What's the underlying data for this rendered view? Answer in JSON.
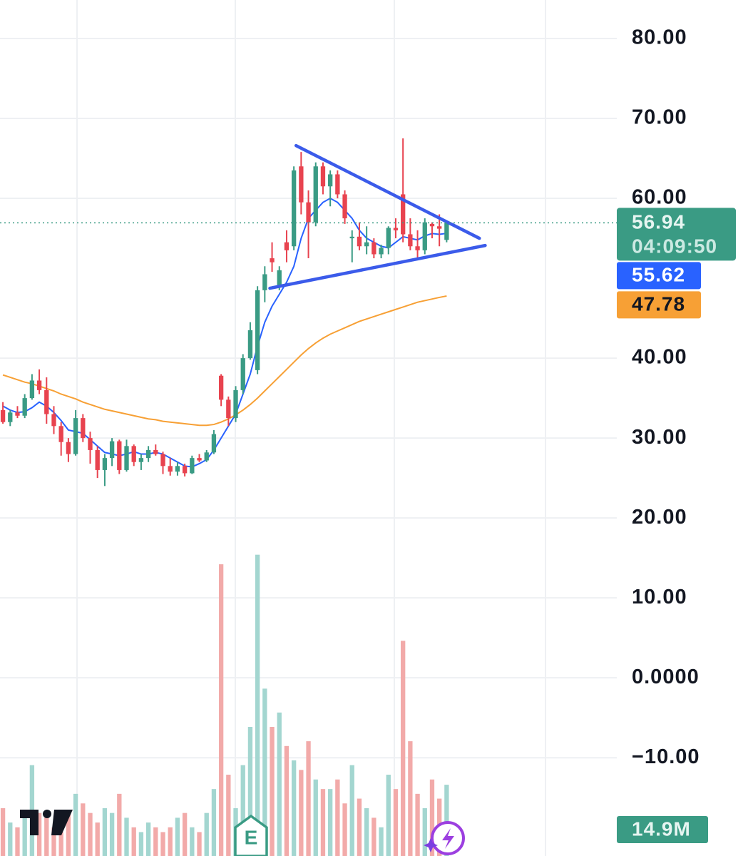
{
  "chart_data": {
    "type": "candlestick",
    "xlim": [
      -0.4,
      83.9
    ],
    "ylim": [
      -22.3,
      84.82
    ],
    "yticks": [
      {
        "value": 80,
        "label": "80.00"
      },
      {
        "value": 70,
        "label": "70.00"
      },
      {
        "value": 60,
        "label": "60.00"
      },
      {
        "value": 40,
        "label": "40.00"
      },
      {
        "value": 30,
        "label": "30.00"
      },
      {
        "value": 20,
        "label": "20.00"
      },
      {
        "value": 10,
        "label": "10.00"
      },
      {
        "value": 0,
        "label": "0.0000"
      },
      {
        "value": -10,
        "label": "−10.00"
      }
    ],
    "grid": true,
    "up_color": "#3a9b84",
    "down_color": "#e8434f",
    "candles": [
      [
        33.5,
        34.5,
        31.8,
        32.0
      ],
      [
        32.0,
        33.5,
        31.5,
        33.2
      ],
      [
        33.2,
        34.0,
        32.5,
        32.8
      ],
      [
        32.8,
        35.5,
        32.5,
        35.0
      ],
      [
        35.0,
        38.0,
        34.8,
        37.2
      ],
      [
        37.2,
        38.6,
        35.5,
        36.0
      ],
      [
        36.0,
        37.6,
        31.8,
        33.0
      ],
      [
        33.0,
        34.0,
        30.5,
        31.5
      ],
      [
        31.5,
        32.0,
        27.8,
        29.5
      ],
      [
        29.5,
        30.0,
        27.0,
        28.0
      ],
      [
        28.0,
        33.5,
        27.8,
        32.5
      ],
      [
        32.5,
        33.0,
        29.5,
        30.0
      ],
      [
        30.0,
        30.8,
        26.8,
        28.5
      ],
      [
        28.5,
        29.0,
        25.0,
        26.0
      ],
      [
        26.0,
        28.0,
        24.0,
        27.5
      ],
      [
        27.5,
        30.0,
        26.5,
        29.6
      ],
      [
        29.6,
        29.8,
        25.5,
        26.0
      ],
      [
        26.0,
        29.8,
        25.8,
        29.0
      ],
      [
        29.0,
        29.2,
        26.5,
        27.0
      ],
      [
        27.0,
        28.0,
        26.0,
        27.5
      ],
      [
        27.5,
        29.0,
        27.0,
        28.5
      ],
      [
        28.5,
        29.2,
        27.8,
        28.0
      ],
      [
        28.0,
        28.3,
        25.5,
        26.5
      ],
      [
        26.5,
        27.5,
        25.3,
        25.8
      ],
      [
        25.8,
        27.0,
        25.3,
        26.5
      ],
      [
        26.5,
        26.8,
        25.2,
        25.6
      ],
      [
        25.6,
        27.8,
        25.5,
        27.5
      ],
      [
        27.5,
        28.0,
        27.0,
        27.2
      ],
      [
        27.2,
        28.5,
        27.0,
        28.2
      ],
      [
        28.2,
        31.0,
        28.0,
        30.5
      ],
      [
        37.8,
        38.0,
        34.0,
        34.8
      ],
      [
        34.8,
        35.2,
        31.5,
        32.5
      ],
      [
        32.5,
        36.5,
        32.0,
        36.0
      ],
      [
        36.0,
        40.5,
        35.5,
        40.0
      ],
      [
        40.0,
        44.5,
        39.8,
        43.5
      ],
      [
        38.5,
        49.0,
        38.0,
        48.5
      ],
      [
        48.5,
        51.5,
        47.0,
        50.5
      ],
      [
        52.5,
        54.5,
        50.8,
        52.0
      ],
      [
        49.0,
        51.5,
        48.5,
        51.0
      ],
      [
        54.5,
        56.0,
        52.0,
        53.5
      ],
      [
        54.0,
        64.0,
        53.5,
        63.5
      ],
      [
        64.0,
        65.8,
        58.0,
        59.5
      ],
      [
        59.5,
        61.0,
        52.5,
        57.0
      ],
      [
        57.0,
        64.5,
        56.5,
        64.0
      ],
      [
        64.0,
        64.5,
        60.5,
        61.5
      ],
      [
        61.5,
        63.5,
        59.0,
        63.0
      ],
      [
        63.0,
        63.5,
        60.0,
        60.5
      ],
      [
        60.5,
        61.0,
        56.8,
        57.5
      ],
      [
        55.0,
        56.0,
        52.0,
        55.2
      ],
      [
        55.2,
        57.0,
        53.5,
        54.0
      ],
      [
        54.0,
        56.5,
        53.0,
        54.5
      ],
      [
        54.5,
        55.0,
        52.5,
        53.0
      ],
      [
        53.0,
        54.2,
        52.5,
        53.8
      ],
      [
        53.8,
        56.5,
        53.0,
        56.3
      ],
      [
        56.3,
        57.5,
        55.0,
        56.0
      ],
      [
        60.5,
        67.5,
        54.5,
        55.5
      ],
      [
        55.5,
        57.5,
        53.5,
        54.0
      ],
      [
        54.0,
        56.0,
        52.5,
        53.5
      ],
      [
        53.5,
        57.5,
        53.0,
        57.0
      ],
      [
        56.8,
        57.0,
        55.0,
        56.5
      ],
      [
        56.5,
        58.0,
        54.0,
        56.2
      ],
      [
        54.8,
        57.2,
        54.5,
        56.94
      ]
    ],
    "series": [
      {
        "color": "#2962ff",
        "values": [
          34.0,
          33.5,
          33.2,
          33.3,
          33.8,
          34.5,
          34.0,
          33.2,
          32.2,
          31.0,
          30.8,
          30.6,
          29.8,
          29.0,
          28.2,
          28.0,
          27.8,
          28.0,
          28.3,
          28.0,
          28.0,
          28.2,
          28.0,
          27.5,
          27.0,
          26.5,
          26.4,
          26.8,
          27.3,
          28.5,
          30.0,
          31.5,
          33.0,
          35.5,
          38.0,
          41.5,
          44.5,
          46.5,
          48.0,
          49.5,
          51.5,
          55.0,
          57.5,
          58.5,
          59.5,
          60.0,
          59.5,
          58.5,
          57.5,
          56.0,
          55.0,
          54.5,
          54.0,
          53.8,
          54.5,
          55.2,
          55.0,
          54.8,
          55.3,
          55.6,
          55.5,
          55.62
        ]
      },
      {
        "color": "#f7a035",
        "values": [
          37.9,
          37.6,
          37.3,
          37.0,
          36.8,
          36.5,
          36.2,
          35.9,
          35.5,
          35.2,
          34.9,
          34.5,
          34.2,
          33.9,
          33.6,
          33.4,
          33.2,
          33.0,
          32.8,
          32.6,
          32.4,
          32.3,
          32.1,
          32.0,
          31.9,
          31.8,
          31.7,
          31.6,
          31.6,
          31.7,
          32.0,
          32.4,
          32.9,
          33.5,
          34.2,
          35.0,
          35.9,
          36.8,
          37.7,
          38.6,
          39.5,
          40.4,
          41.2,
          41.9,
          42.5,
          43.0,
          43.4,
          43.8,
          44.2,
          44.6,
          44.9,
          45.2,
          45.5,
          45.8,
          46.1,
          46.4,
          46.7,
          47.0,
          47.2,
          47.4,
          47.6,
          47.78
        ]
      }
    ],
    "volume": {
      "ylim": [
        0,
        179
      ],
      "up_color": "#a3d6d0",
      "down_color": "#f2aaa9",
      "values": [
        10,
        7,
        6,
        8,
        19,
        9,
        8,
        6,
        5,
        9,
        13,
        11,
        9,
        7,
        10,
        9,
        13,
        8,
        6,
        5,
        7,
        6,
        5,
        6,
        8,
        9,
        6,
        5,
        9,
        14,
        61,
        17,
        10,
        19,
        27,
        63,
        35,
        27,
        30,
        23,
        20,
        18,
        24,
        16,
        14,
        14,
        16,
        11,
        19,
        12,
        10,
        8,
        6,
        17,
        14,
        45,
        24,
        13,
        10,
        16,
        12,
        14.9
      ],
      "last_value_label": "14.9M"
    },
    "trendlines": [
      {
        "color": "#3b5bea",
        "x": [
          40.3,
          65.5
        ],
        "y": [
          66.6,
          55.0
        ]
      },
      {
        "color": "#3b5bea",
        "x": [
          36.7,
          66.3
        ],
        "y": [
          48.75,
          54.1
        ]
      }
    ],
    "countdown": "04:09:50",
    "earnings_marker": "E"
  }
}
